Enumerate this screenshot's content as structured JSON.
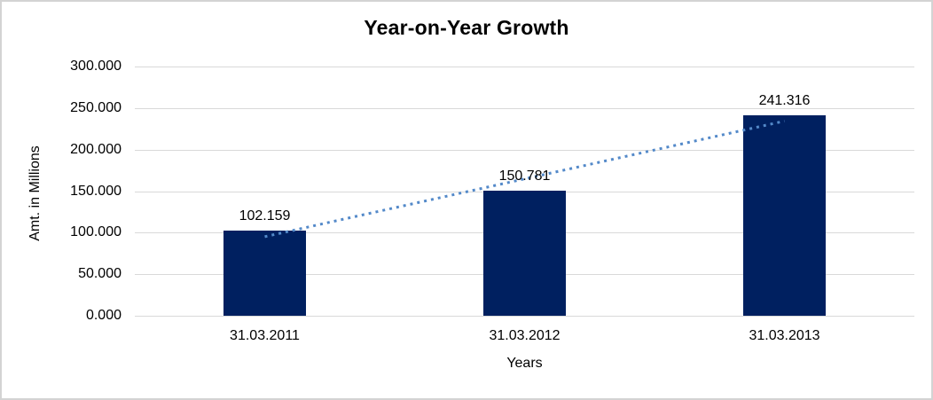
{
  "window": {
    "background_color": "#ffffff",
    "border_color": "#d3d3d3"
  },
  "chart_data": {
    "type": "bar",
    "title": "Year-on-Year Growth",
    "categories": [
      "31.03.2011",
      "31.03.2012",
      "31.03.2013"
    ],
    "values": [
      102.159,
      150.781,
      241.316
    ],
    "data_labels": [
      "102.159",
      "150.781",
      "241.316"
    ],
    "xlabel": "Years",
    "ylabel": "Amt. in Millions",
    "ylim": [
      0,
      300
    ],
    "y_ticks": [
      {
        "value": 0,
        "label": "0.000"
      },
      {
        "value": 50,
        "label": "50.000"
      },
      {
        "value": 100,
        "label": "100.000"
      },
      {
        "value": 150,
        "label": "150.000"
      },
      {
        "value": 200,
        "label": "200.000"
      },
      {
        "value": 250,
        "label": "250.000"
      },
      {
        "value": 300,
        "label": "300.000"
      }
    ],
    "grid": "horizontal",
    "legend": "none",
    "bar_color": "#002060",
    "gridline_color": "#d9d9d9",
    "text_color": "#000000",
    "trendline": {
      "type": "linear",
      "style": "dotted",
      "color": "#5389c9",
      "spans": "first-to-last-category"
    }
  }
}
